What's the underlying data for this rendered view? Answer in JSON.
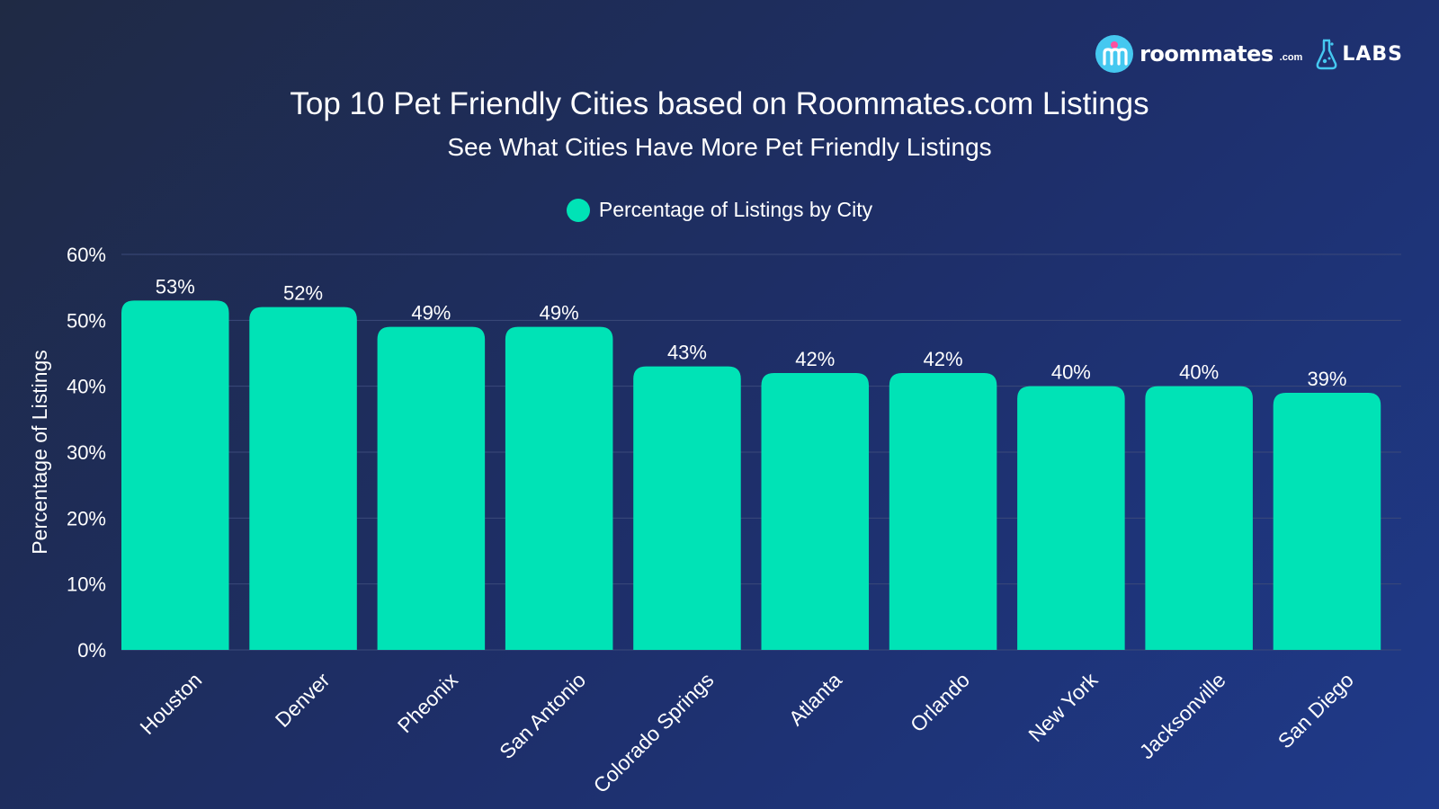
{
  "header": {
    "title": "Top 10 Pet Friendly Cities based on Roommates.com Listings",
    "subtitle": "See What Cities Have More Pet Friendly Listings"
  },
  "logo": {
    "brand": "roommates",
    "brand_suffix": ".com",
    "labs": "LABS"
  },
  "colors": {
    "bar": "#00e3b6",
    "gridline": "#3b4a7a"
  },
  "chart_data": {
    "type": "bar",
    "title": "Top 10 Pet Friendly Cities based on Roommates.com Listings",
    "subtitle": "See What Cities Have More Pet Friendly Listings",
    "categories": [
      "Houston",
      "Denver",
      "Pheonix",
      "San Antonio",
      "Colorado Springs",
      "Atlanta",
      "Orlando",
      "New York",
      "Jacksonville",
      "San Diego"
    ],
    "series": [
      {
        "name": "Percentage of Listings by City",
        "values": [
          53,
          52,
          49,
          49,
          43,
          42,
          42,
          40,
          40,
          39
        ]
      }
    ],
    "data_labels": [
      "53%",
      "52%",
      "49%",
      "49%",
      "43%",
      "42%",
      "42%",
      "40%",
      "40%",
      "39%"
    ],
    "ylabel": "Percentage of Listings",
    "xlabel": "",
    "ylim": [
      0,
      60
    ],
    "yticks": [
      0,
      10,
      20,
      30,
      40,
      50,
      60
    ],
    "ytick_labels": [
      "0%",
      "10%",
      "20%",
      "30%",
      "40%",
      "50%",
      "60%"
    ],
    "grid": true,
    "legend": "top-center"
  }
}
